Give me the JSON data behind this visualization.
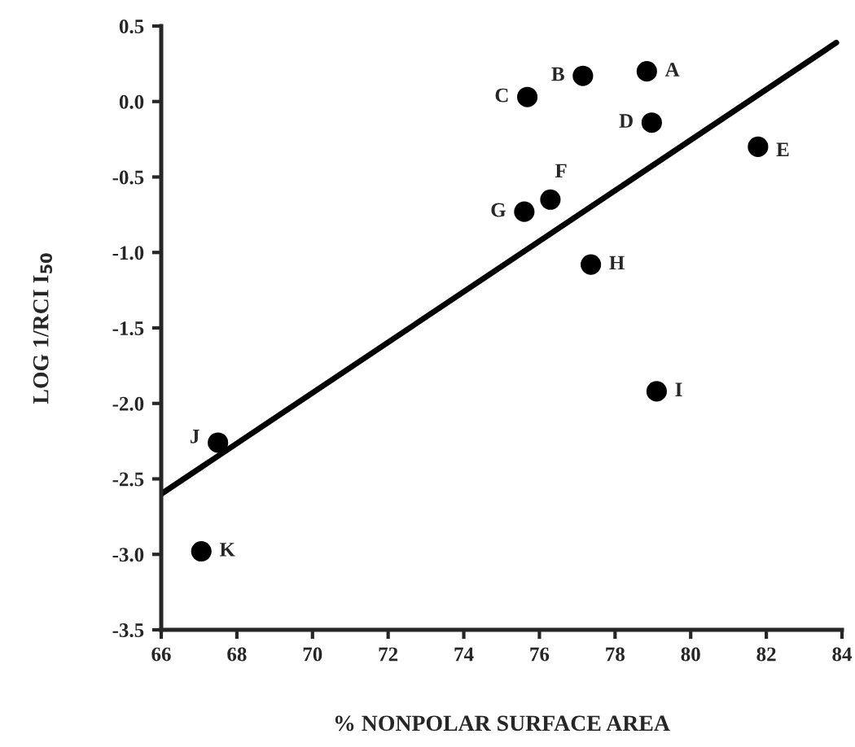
{
  "chart_data": {
    "type": "scatter",
    "xlabel": "% NONPOLAR SURFACE AREA",
    "ylabel": "LOG 1/RCI I$_{50}$",
    "series": [
      {
        "color": "#000000",
        "marker": "circle",
        "x": [
          78.84,
          77.15,
          75.68,
          78.97,
          81.78,
          76.29,
          75.6,
          77.36,
          79.1,
          67.5,
          67.06
        ],
        "values": [
          0.2,
          0.17,
          0.03,
          -0.14,
          -0.3,
          -0.65,
          -0.73,
          -1.08,
          -1.92,
          -2.26,
          -2.98
        ]
      },
      {
        "type": "line",
        "color": "#000000",
        "x": [
          66,
          83.85
        ],
        "values": [
          -2.6,
          0.39
        ]
      }
    ],
    "annotations": [
      {
        "text": "A",
        "x": 78.84,
        "y": 0.2
      },
      {
        "text": "B",
        "x": 77.15,
        "y": 0.17
      },
      {
        "text": "C",
        "x": 75.68,
        "y": 0.03
      },
      {
        "text": "D",
        "x": 78.97,
        "y": -0.14
      },
      {
        "text": "E",
        "x": 81.78,
        "y": -0.3
      },
      {
        "text": "F",
        "x": 76.29,
        "y": -0.65
      },
      {
        "text": "G",
        "x": 75.6,
        "y": -0.73
      },
      {
        "text": "H",
        "x": 77.36,
        "y": -1.08
      },
      {
        "text": "I",
        "x": 79.1,
        "y": -1.92
      },
      {
        "text": "J",
        "x": 67.5,
        "y": -2.26
      },
      {
        "text": "K",
        "x": 67.06,
        "y": -2.98
      }
    ],
    "xlim": [
      66,
      84
    ],
    "xticks": [
      66,
      68,
      70,
      72,
      74,
      76,
      78,
      80,
      82,
      84
    ],
    "ylim": [
      -3.5,
      0.5
    ],
    "yticks": [
      {
        "value": -3.5,
        "label": "-3.5"
      },
      {
        "value": -3.0,
        "label": "-3.0"
      },
      {
        "value": -2.5,
        "label": "-2.5"
      },
      {
        "value": -2.0,
        "label": "-2.0"
      },
      {
        "value": -1.5,
        "label": "-1.5"
      },
      {
        "value": -1.0,
        "label": "-1.0"
      },
      {
        "value": -0.5,
        "label": "-0.5"
      },
      {
        "value": 0.0,
        "label": "0.0"
      },
      {
        "value": 0.5,
        "label": "0.5"
      }
    ]
  }
}
